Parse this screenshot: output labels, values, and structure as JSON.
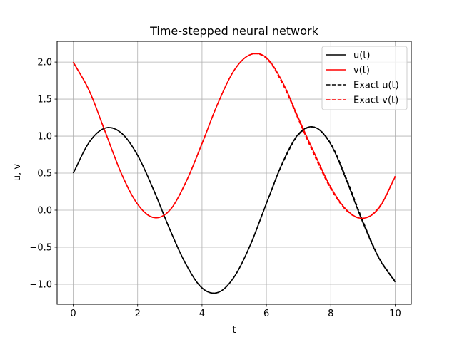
{
  "chart_data": {
    "type": "line",
    "title": "Time-stepped neural network",
    "xlabel": "t",
    "ylabel": "u, v",
    "xlim": [
      -0.5,
      10.5
    ],
    "ylim": [
      -1.27,
      2.28
    ],
    "xticks": [
      0,
      2,
      4,
      6,
      8,
      10
    ],
    "xtick_labels": [
      "0",
      "2",
      "4",
      "6",
      "8",
      "10"
    ],
    "yticks": [
      -1.0,
      -0.5,
      0.0,
      0.5,
      1.0,
      1.5,
      2.0
    ],
    "ytick_labels": [
      "−1.0",
      "−0.5",
      "0.0",
      "0.5",
      "1.0",
      "1.5",
      "2.0"
    ],
    "grid": true,
    "legend_position": "top-right",
    "series": [
      {
        "name": "u(t)",
        "color": "#000000",
        "style": "solid",
        "tmax": 10.0,
        "x": [
          0,
          0.5,
          1.0,
          1.5,
          2.0,
          2.5,
          3.0,
          3.5,
          4.0,
          4.5,
          5.0,
          5.5,
          6.0,
          6.5,
          7.0,
          7.5,
          8.0,
          8.5,
          9.0,
          9.5,
          10.0
        ],
        "y": [
          0.5,
          0.92,
          1.11,
          1.04,
          0.74,
          0.27,
          -0.26,
          -0.73,
          -1.05,
          -1.11,
          -0.9,
          -0.47,
          0.09,
          0.64,
          1.03,
          1.12,
          0.89,
          0.39,
          -0.17,
          -0.65,
          -0.97
        ]
      },
      {
        "name": "v(t)",
        "color": "#ff0000",
        "style": "solid",
        "tmax": 10.0,
        "x": [
          0,
          0.5,
          1.0,
          1.5,
          2.0,
          2.5,
          3.0,
          3.5,
          4.0,
          4.5,
          5.0,
          5.5,
          6.0,
          6.5,
          7.0,
          7.5,
          8.0,
          8.5,
          9.0,
          9.5,
          10.0
        ],
        "y": [
          2.0,
          1.61,
          1.05,
          0.49,
          0.08,
          -0.1,
          0.0,
          0.38,
          0.9,
          1.45,
          1.89,
          2.1,
          2.06,
          1.73,
          1.24,
          0.76,
          0.31,
          0.0,
          -0.11,
          0.03,
          0.45
        ]
      },
      {
        "name": "Exact u(t)",
        "color": "#000000",
        "style": "dashed",
        "tmax": 10.0,
        "x": [
          0,
          0.5,
          1.0,
          1.5,
          2.0,
          2.5,
          3.0,
          3.5,
          4.0,
          4.5,
          5.0,
          5.5,
          6.0,
          6.5,
          7.0,
          7.5,
          8.0,
          8.5,
          9.0,
          9.5,
          10.0
        ],
        "y": [
          0.5,
          0.92,
          1.11,
          1.04,
          0.74,
          0.27,
          -0.26,
          -0.73,
          -1.05,
          -1.11,
          -0.9,
          -0.47,
          0.09,
          0.63,
          1.02,
          1.12,
          0.9,
          0.41,
          -0.15,
          -0.64,
          -0.96
        ]
      },
      {
        "name": "Exact v(t)",
        "color": "#ff0000",
        "style": "dashed",
        "tmax": 10.0,
        "x": [
          0,
          0.5,
          1.0,
          1.5,
          2.0,
          2.5,
          3.0,
          3.5,
          4.0,
          4.5,
          5.0,
          5.5,
          6.0,
          6.5,
          7.0,
          7.5,
          8.0,
          8.5,
          9.0,
          9.5,
          10.0
        ],
        "y": [
          2.0,
          1.61,
          1.05,
          0.49,
          0.08,
          -0.1,
          0.0,
          0.38,
          0.9,
          1.45,
          1.89,
          2.1,
          2.05,
          1.71,
          1.22,
          0.73,
          0.29,
          -0.01,
          -0.11,
          0.04,
          0.46
        ]
      }
    ]
  }
}
